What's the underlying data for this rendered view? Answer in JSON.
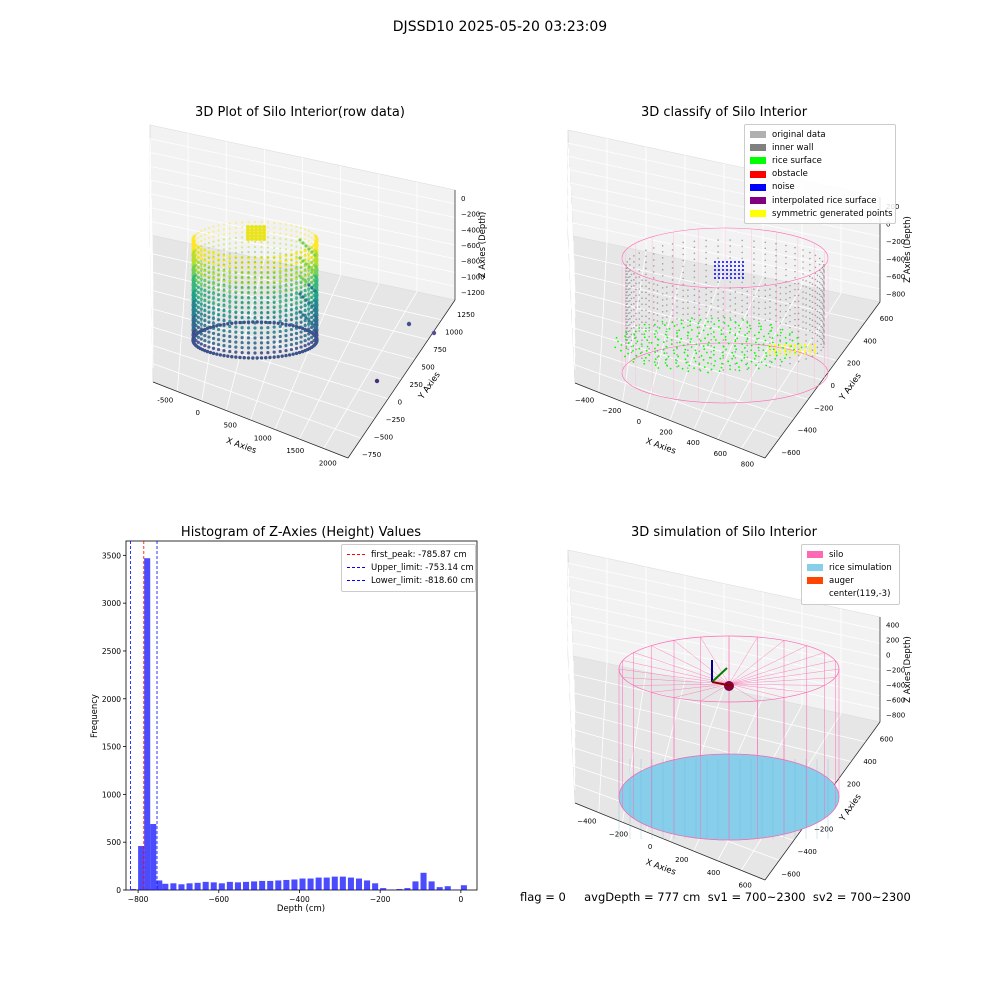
{
  "suptitle": "DJSSD10 2025-05-20 03:23:09",
  "footer": "flag = 0     avgDepth = 777 cm  sv1 = 700~2300  sv2 = 700~2300",
  "colors": {
    "silo": "#ff69b4",
    "rice_sim": "#87ceeb",
    "auger": "#ff4500",
    "hist_bar": "#0000ff",
    "peak_line": "#ff0000",
    "limit_line": "#0000ff"
  },
  "chart_data": [
    {
      "type": "scatter",
      "panel": "top-left",
      "title": "3D Plot of Silo Interior(row data)",
      "xlabel": "X Axies",
      "ylabel": "Y Axies",
      "zlabel": "Z Axies (Depth)",
      "x_ticks": [
        "-500",
        "0",
        "500",
        "1000",
        "1500",
        "2000"
      ],
      "y_ticks": [
        "−750",
        "−500",
        "−250",
        "0",
        "250",
        "500",
        "750",
        "1000",
        "1250"
      ],
      "z_ticks": [
        "0",
        "−200",
        "−400",
        "−600",
        "−800",
        "−1000",
        "−1200"
      ],
      "colormap": "viridis",
      "outlier_points": [
        {
          "x": 1900,
          "y": 700,
          "z": -1150
        },
        {
          "x": 1600,
          "y": 1000,
          "z": -1100
        },
        {
          "x": 1700,
          "y": -500,
          "z": -1200
        }
      ]
    },
    {
      "type": "scatter",
      "panel": "top-right",
      "title": "3D classify of Silo Interior",
      "xlabel": "X Axies",
      "ylabel": "Y Axies",
      "zlabel": "Z Axies (Depth)",
      "x_ticks": [
        "−400",
        "−200",
        "0",
        "200",
        "400",
        "600",
        "800"
      ],
      "y_ticks": [
        "−600",
        "−400",
        "−200",
        "0",
        "200",
        "400",
        "600"
      ],
      "z_ticks": [
        "200",
        "0",
        "−200",
        "−400",
        "−600",
        "−800"
      ],
      "legend": [
        {
          "label": "original data",
          "color": "#b0b0b0"
        },
        {
          "label": "inner wall",
          "color": "#808080"
        },
        {
          "label": "rice surface",
          "color": "#00ff00"
        },
        {
          "label": "obstacle",
          "color": "#ff0000"
        },
        {
          "label": "noise",
          "color": "#0000ff"
        },
        {
          "label": "interpolated rice surface",
          "color": "#800080"
        },
        {
          "label": "symmetric generated points",
          "color": "#ffff00"
        }
      ],
      "legend_placement": "top-right"
    },
    {
      "type": "bar",
      "panel": "bottom-left",
      "title": "Histogram of Z-Axies (Height) Values",
      "xlabel": "Depth (cm)",
      "ylabel": "Frequency",
      "xlim": [
        -830,
        40
      ],
      "ylim": [
        0,
        3650
      ],
      "x_ticks": [
        -800,
        -600,
        -400,
        -200,
        0
      ],
      "y_ticks": [
        0,
        500,
        1000,
        1500,
        2000,
        2500,
        3000,
        3500
      ],
      "bins_x": [
        -820,
        -800,
        -785,
        -770,
        -755,
        -740,
        -720,
        -700,
        -680,
        -660,
        -640,
        -620,
        -600,
        -580,
        -560,
        -540,
        -520,
        -500,
        -480,
        -460,
        -440,
        -420,
        -400,
        -380,
        -360,
        -340,
        -320,
        -300,
        -280,
        -260,
        -240,
        -220,
        -200,
        -180,
        -160,
        -140,
        -120,
        -100,
        -80,
        -60,
        -40,
        -20,
        0
      ],
      "bins_w": 15,
      "values": [
        10,
        460,
        3470,
        690,
        100,
        65,
        70,
        60,
        70,
        75,
        85,
        80,
        70,
        85,
        80,
        85,
        90,
        95,
        95,
        100,
        105,
        110,
        120,
        120,
        130,
        130,
        140,
        140,
        130,
        120,
        100,
        70,
        20,
        5,
        10,
        20,
        90,
        180,
        90,
        30,
        40,
        5,
        50
      ],
      "vlines": [
        {
          "x": -785.87,
          "label": "first_peak: -785.87 cm",
          "color": "#ff0000"
        },
        {
          "x": -753.14,
          "label": "Upper_limit: -753.14 cm",
          "color": "#0000ff"
        },
        {
          "x": -818.6,
          "label": "Lower_limit: -818.60 cm",
          "color": "#0000ff"
        }
      ],
      "legend_placement": "top-right"
    },
    {
      "type": "scatter",
      "panel": "bottom-right",
      "title": "3D simulation of Silo Interior",
      "xlabel": "X Axies",
      "ylabel": "Y Axies",
      "zlabel": "Z Axies (Depth)",
      "x_ticks": [
        "−400",
        "−200",
        "0",
        "200",
        "400",
        "600"
      ],
      "y_ticks": [
        "−600",
        "−400",
        "−200",
        "0",
        "200",
        "400",
        "600"
      ],
      "z_ticks": [
        "400",
        "200",
        "0",
        "−200",
        "−400",
        "−600",
        "−800"
      ],
      "legend": [
        {
          "label": "silo",
          "color": "#ff69b4"
        },
        {
          "label": "rice simulation",
          "color": "#87ceeb"
        },
        {
          "label": "auger",
          "color": "#ff4500"
        },
        {
          "label": "center(119,-3)",
          "color": ""
        }
      ],
      "legend_placement": "top-right"
    }
  ]
}
